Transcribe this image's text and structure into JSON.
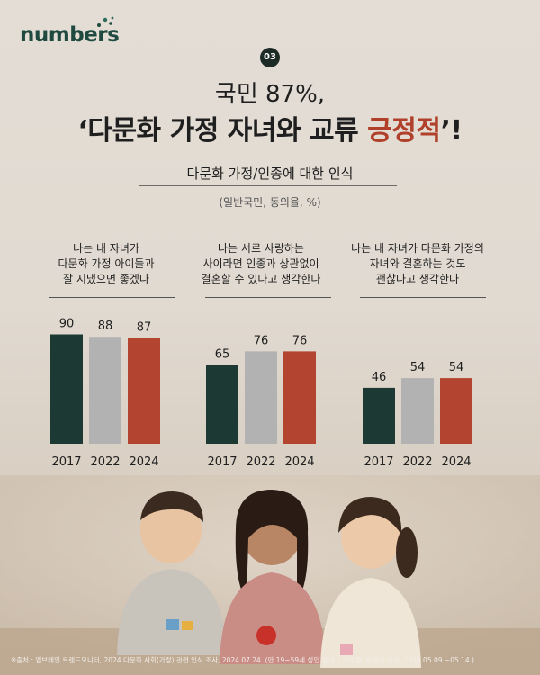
{
  "brand": {
    "logo_text": "numbers",
    "accent": "#1f4a3f"
  },
  "badge": "03",
  "headline": {
    "line1": "국민 87%,",
    "line2_prefix": "‘다문화 가정 자녀와 교류 ",
    "line2_highlight": "긍정적",
    "line2_suffix": "’!",
    "highlight_color": "#b0402a"
  },
  "subtitle": "다문화 가정/인종에 대한 인식",
  "unit": "(일반국민, 동의율, %)",
  "chart_data": [
    {
      "type": "bar",
      "title": [
        "나는 내 자녀가",
        "다문화 가정 아이들과",
        "잘 지냈으면 좋겠다"
      ],
      "categories": [
        "2017",
        "2022",
        "2024"
      ],
      "values": [
        90,
        88,
        87
      ],
      "colors": [
        "#1c3a33",
        "#b3b2b2",
        "#b24430"
      ],
      "ylim": [
        0,
        100
      ]
    },
    {
      "type": "bar",
      "title": [
        "나는 서로 사랑하는",
        "사이라면 인종과 상관없이",
        "결혼할 수 있다고 생각한다"
      ],
      "categories": [
        "2017",
        "2022",
        "2024"
      ],
      "values": [
        65,
        76,
        76
      ],
      "colors": [
        "#1c3a33",
        "#b3b2b2",
        "#b24430"
      ],
      "ylim": [
        0,
        100
      ]
    },
    {
      "type": "bar",
      "title": [
        "나는 내 자녀가 다문화 가정의",
        "자녀와 결혼하는 것도",
        "괜찮다고 생각한다"
      ],
      "categories": [
        "2017",
        "2022",
        "2024"
      ],
      "values": [
        46,
        54,
        54
      ],
      "colors": [
        "#1c3a33",
        "#b3b2b2",
        "#b24430"
      ],
      "ylim": [
        0,
        100
      ]
    }
  ],
  "source": "※출처 : 엠브레인 트렌드모니터, 2024 다문화 사회(가정) 관련 인식 조사, 2024.07.24. (만 19~59세 성인 남녀 1,000명, 온라인 조사, 2024.05.09.~05.14.)"
}
